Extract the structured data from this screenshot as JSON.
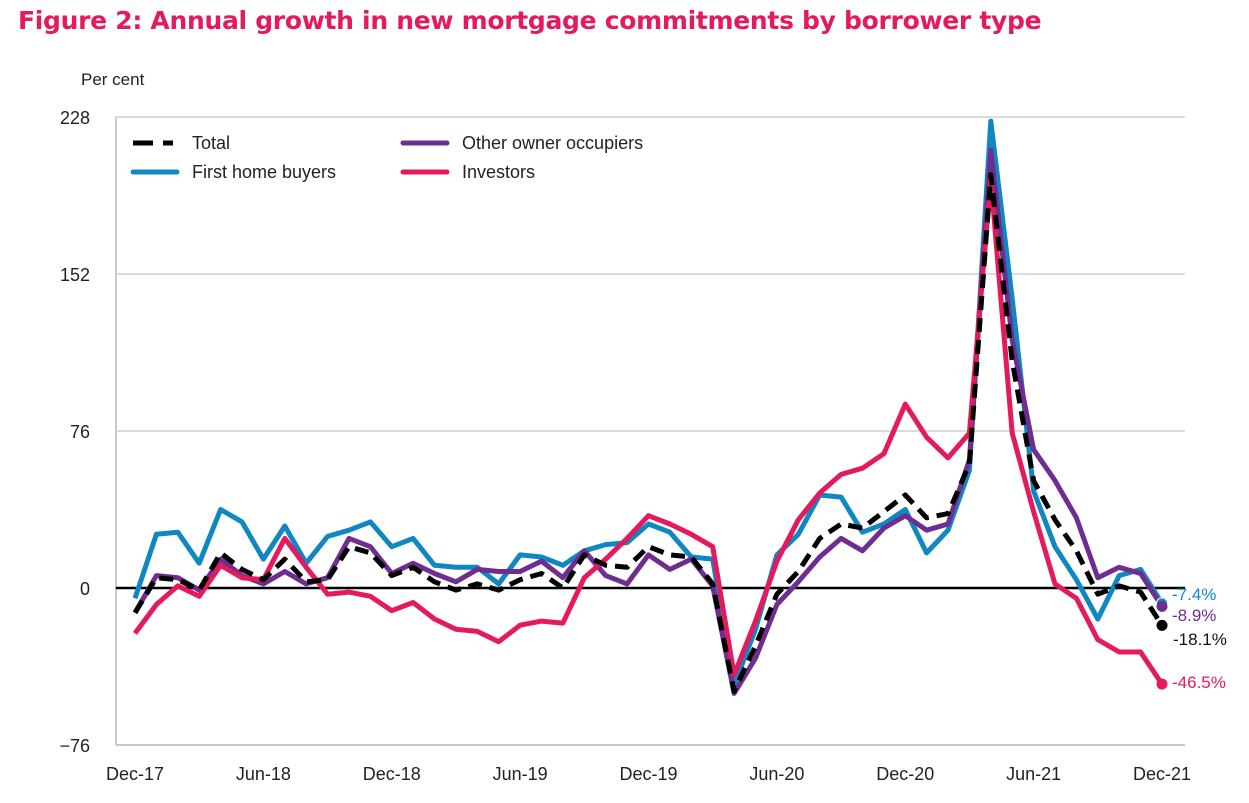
{
  "title": "Figure 2:  Annual growth in new mortgage commitments by borrower type",
  "chart_data": {
    "type": "line",
    "title": "Figure 2:  Annual growth in new mortgage commitments by borrower type",
    "ylabel": "Per cent",
    "xlabel": "",
    "ylim": [
      -76,
      228
    ],
    "yticks": [
      -76,
      0,
      76,
      152,
      228
    ],
    "grid": true,
    "legend_position": "top-left",
    "x_start": "Dec-17",
    "x_end": "Dec-21",
    "frequency": "monthly",
    "xtick_labels": [
      "Dec-17",
      "Jun-18",
      "Dec-18",
      "Jun-19",
      "Dec-19",
      "Jun-20",
      "Dec-20",
      "Jun-21",
      "Dec-21"
    ],
    "xtick_index": [
      0,
      6,
      12,
      18,
      24,
      30,
      36,
      42,
      48
    ],
    "series": [
      {
        "name": "Total",
        "color": "#000000",
        "style": "dashed",
        "end_label": "-18.1%",
        "values": [
          -12,
          5,
          4,
          -1,
          17,
          9,
          4,
          14,
          3,
          4,
          20,
          17,
          6,
          10,
          3,
          -1,
          2,
          -1,
          4,
          7,
          0,
          16,
          11,
          10,
          20,
          16,
          15,
          2,
          -50,
          -28,
          -3,
          8,
          24,
          31,
          29,
          37,
          45,
          34,
          36,
          60,
          200,
          110,
          52,
          33,
          18,
          -3,
          1,
          -2,
          -18.1
        ]
      },
      {
        "name": "First home buyers",
        "color": "#0f87c1",
        "style": "solid",
        "end_label": "-7.4%",
        "values": [
          -5,
          26,
          27,
          12,
          38,
          32,
          14,
          30,
          12,
          25,
          28,
          32,
          20,
          24,
          11,
          10,
          10,
          2,
          16,
          15,
          11,
          18,
          21,
          22,
          31,
          27,
          15,
          14,
          -47,
          -20,
          16,
          26,
          45,
          44,
          27,
          31,
          38,
          17,
          28,
          57,
          226,
          140,
          47,
          20,
          4,
          -15,
          6,
          9,
          -7.4
        ]
      },
      {
        "name": "Other owner occupiers",
        "color": "#6f2c91",
        "style": "solid",
        "end_label": "-8.9%",
        "values": [
          -12,
          6,
          5,
          -1,
          14,
          6,
          2,
          8,
          2,
          5,
          24,
          20,
          7,
          12,
          7,
          3,
          9,
          8,
          8,
          13,
          5,
          18,
          6,
          2,
          16,
          9,
          14,
          1,
          -51,
          -34,
          -8,
          3,
          15,
          24,
          18,
          29,
          35,
          28,
          31,
          62,
          212,
          120,
          67,
          52,
          34,
          5,
          10,
          7,
          -8.9
        ]
      },
      {
        "name": "Investors",
        "color": "#e5195e",
        "style": "solid",
        "end_label": "-46.5%",
        "values": [
          -22,
          -8,
          1,
          -4,
          11,
          5,
          4,
          24,
          10,
          -3,
          -2,
          -4,
          -11,
          -7,
          -15,
          -20,
          -21,
          -26,
          -18,
          -16,
          -17,
          5,
          14,
          24,
          35,
          31,
          26,
          20,
          -42,
          -16,
          13,
          33,
          46,
          55,
          58,
          65,
          89,
          73,
          63,
          75,
          198,
          75,
          37,
          2,
          -5,
          -25,
          -31,
          -31,
          -46.5
        ]
      }
    ]
  }
}
